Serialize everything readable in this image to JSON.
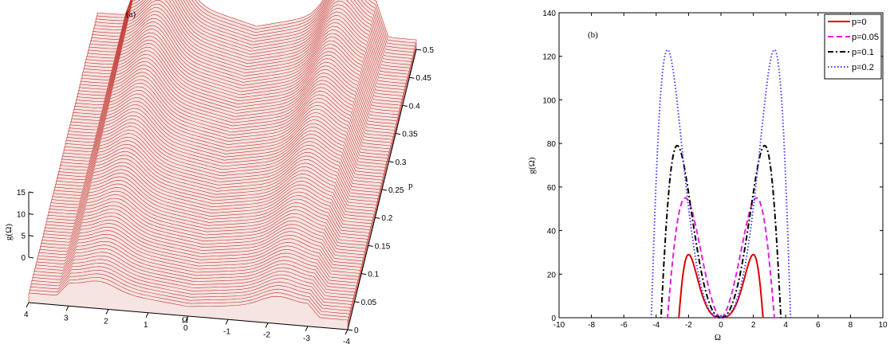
{
  "chart_data": [
    {
      "type": "surface",
      "panel_label": "(a)",
      "xlabel": "Ω",
      "ylabel": "p",
      "zlabel": "g(Ω)",
      "omega_ticks": [
        "4",
        "3",
        "2",
        "1",
        "0",
        "-1",
        "-2",
        "-3",
        "-4"
      ],
      "p_ticks": [
        "0",
        "0.05",
        "0.1",
        "0.15",
        "0.2",
        "0.25",
        "0.3",
        "0.35",
        "0.4",
        "0.45",
        "0.5"
      ],
      "z_ticks": [
        "0",
        "5",
        "10",
        "15"
      ],
      "color": "#c0302a"
    },
    {
      "type": "line",
      "panel_label": "(b)",
      "xlabel": "Ω",
      "ylabel": "g(Ω)",
      "xlim": [
        -10,
        10
      ],
      "ylim": [
        0,
        140
      ],
      "x_ticks": [
        "-10",
        "-8",
        "-6",
        "-4",
        "-2",
        "0",
        "2",
        "4",
        "6",
        "8",
        "10"
      ],
      "y_ticks": [
        "0",
        "20",
        "40",
        "60",
        "80",
        "100",
        "120",
        "140"
      ],
      "legend_position": "top-right",
      "series": [
        {
          "name": "p=0",
          "color": "#e00000",
          "dash": "solid",
          "edge": 2.6,
          "peak_x": 2.0,
          "peak_y": 29
        },
        {
          "name": "p=0.05",
          "color": "#e020e0",
          "dash": "dashed",
          "edge": 3.3,
          "peak_x": 2.2,
          "peak_y": 55
        },
        {
          "name": "p=0.1",
          "color": "#000000",
          "dash": "dashdot",
          "edge": 3.7,
          "peak_x": 2.7,
          "peak_y": 79
        },
        {
          "name": "p=0.2",
          "color": "#4040ff",
          "dash": "dotted",
          "edge": 4.3,
          "peak_x": 3.3,
          "peak_y": 123
        }
      ]
    }
  ]
}
